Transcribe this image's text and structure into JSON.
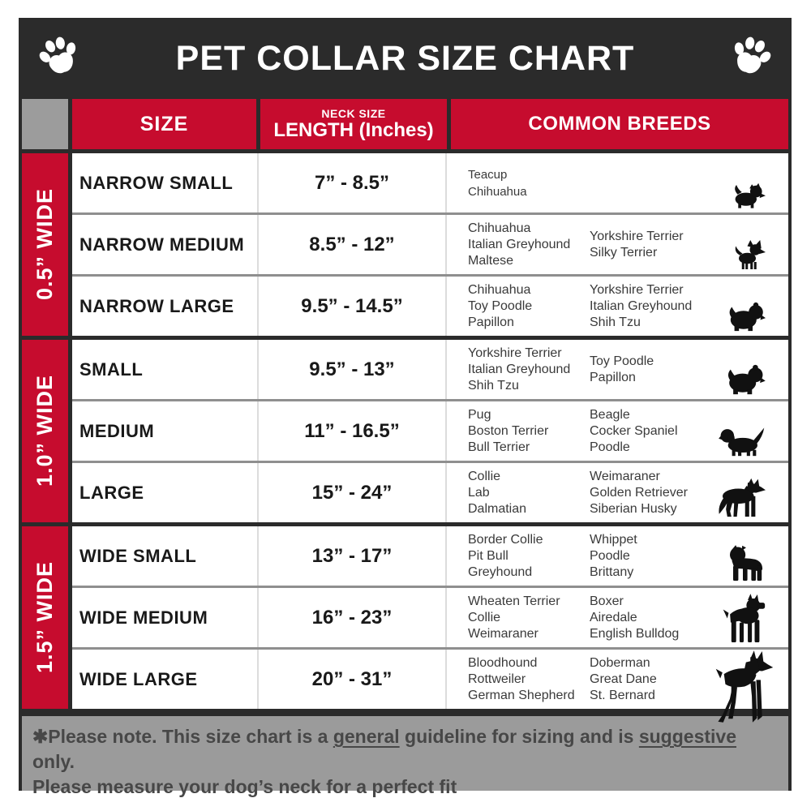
{
  "title_band": {
    "title": "PET COLLAR SIZE CHART"
  },
  "header": {
    "size": "SIZE",
    "neck_top": "NECK SIZE",
    "neck_main": "LENGTH (Inches)",
    "breeds": "COMMON BREEDS"
  },
  "side_groups": [
    {
      "label": "0.5” WIDE"
    },
    {
      "label": "1.0” WIDE"
    },
    {
      "label": "1.5” WIDE"
    }
  ],
  "rows": [
    {
      "size": "NARROW SMALL",
      "length": "7” - 8.5”",
      "breeds_col1": [
        "Teacup",
        "Chihuahua"
      ],
      "breeds_col2": [],
      "icon": "yorkshire-terrier"
    },
    {
      "size": "NARROW MEDIUM",
      "length": "8.5” - 12”",
      "breeds_col1": [
        "Chihuahua",
        "Italian Greyhound",
        "Maltese"
      ],
      "breeds_col2": [
        "Yorkshire Terrier",
        "Silky Terrier"
      ],
      "icon": "chihuahua"
    },
    {
      "size": "NARROW LARGE",
      "length": "9.5” - 14.5”",
      "breeds_col1": [
        "Chihuahua",
        "Toy Poodle",
        "Papillon"
      ],
      "breeds_col2": [
        "Yorkshire Terrier",
        "Italian Greyhound",
        "Shih Tzu"
      ],
      "icon": "shih-tzu"
    },
    {
      "size": "SMALL",
      "length": "9.5” - 13”",
      "breeds_col1": [
        "Yorkshire Terrier",
        "Italian Greyhound",
        "Shih Tzu"
      ],
      "breeds_col2": [
        "Toy Poodle",
        "Papillon"
      ],
      "icon": "pekingese"
    },
    {
      "size": "MEDIUM",
      "length": "11” - 16.5”",
      "breeds_col1": [
        "Pug",
        "Boston Terrier",
        "Bull Terrier"
      ],
      "breeds_col2": [
        "Beagle",
        "Cocker Spaniel",
        "Poodle"
      ],
      "icon": "beagle"
    },
    {
      "size": "LARGE",
      "length": "15” - 24”",
      "breeds_col1": [
        "Collie",
        "Lab",
        "Dalmatian"
      ],
      "breeds_col2": [
        "Weimaraner",
        "Golden Retriever",
        "Siberian Husky"
      ],
      "icon": "german-shepherd"
    },
    {
      "size": "WIDE SMALL",
      "length": "13” - 17”",
      "breeds_col1": [
        "Border Collie",
        "Pit Bull",
        "Greyhound"
      ],
      "breeds_col2": [
        "Whippet",
        "Poodle",
        "Brittany"
      ],
      "icon": "pit-bull"
    },
    {
      "size": "WIDE MEDIUM",
      "length": "16” - 23”",
      "breeds_col1": [
        "Wheaten Terrier",
        "Collie",
        "Weimaraner"
      ],
      "breeds_col2": [
        "Boxer",
        "Airedale",
        "English Bulldog"
      ],
      "icon": "boxer"
    },
    {
      "size": "WIDE LARGE",
      "length": "20” - 31”",
      "breeds_col1": [
        "Bloodhound",
        "Rottweiler",
        "German Shepherd"
      ],
      "breeds_col2": [
        "Doberman",
        "Great Dane",
        "St. Bernard"
      ],
      "icon": "doberman"
    }
  ],
  "footer": {
    "line1_pre": "✱Please note. This size chart is a ",
    "line1_underline1": "general",
    "line1_mid": " guideline for sizing and is ",
    "line1_underline2": "suggestive",
    "line1_post": " only.",
    "line2": "Please measure your dog’s neck for a perfect fit"
  },
  "colors": {
    "accent_red": "#c60c2e",
    "band_dark": "#2b2b2b",
    "corner_gray": "#9c9c9c",
    "footer_gray": "#9b9b9b",
    "row_separator": "#8f8f8f",
    "text_black": "#191919",
    "footer_text": "#474747"
  }
}
